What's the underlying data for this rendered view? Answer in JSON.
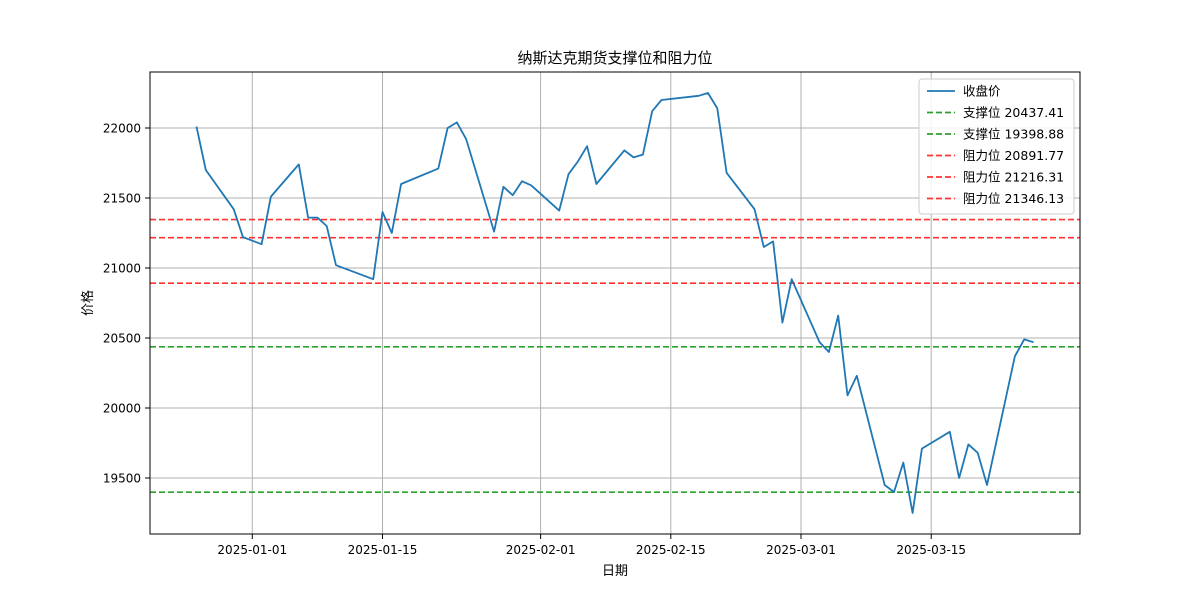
{
  "chart_data": {
    "type": "line",
    "title": "纳斯达克期货支撑位和阻力位",
    "xlabel": "日期",
    "ylabel": "价格",
    "xlim": [
      "2024-12-21",
      "2025-03-31"
    ],
    "ylim": [
      19100,
      22400
    ],
    "x_ticks": [
      "2025-01-01",
      "2025-01-15",
      "2025-02-01",
      "2025-02-15",
      "2025-03-01",
      "2025-03-15"
    ],
    "y_ticks": [
      19500,
      20000,
      20500,
      21000,
      21500,
      22000
    ],
    "grid": true,
    "legend_position": "top-right",
    "colors": {
      "close": "#1f77b4",
      "support": "#2ca02c",
      "resistance": "#ff3333",
      "grid": "#b0b0b0"
    },
    "series": [
      {
        "name": "收盘价",
        "style": "solid",
        "points": [
          [
            "2024-12-26",
            22010
          ],
          [
            "2024-12-27",
            21700
          ],
          [
            "2024-12-30",
            21420
          ],
          [
            "2024-12-31",
            21220
          ],
          [
            "2025-01-02",
            21170
          ],
          [
            "2025-01-03",
            21510
          ],
          [
            "2025-01-06",
            21740
          ],
          [
            "2025-01-07",
            21360
          ],
          [
            "2025-01-08",
            21360
          ],
          [
            "2025-01-09",
            21300
          ],
          [
            "2025-01-10",
            21020
          ],
          [
            "2025-01-14",
            20920
          ],
          [
            "2025-01-15",
            21400
          ],
          [
            "2025-01-16",
            21250
          ],
          [
            "2025-01-17",
            21600
          ],
          [
            "2025-01-21",
            21710
          ],
          [
            "2025-01-22",
            22000
          ],
          [
            "2025-01-23",
            22040
          ],
          [
            "2025-01-24",
            21920
          ],
          [
            "2025-01-27",
            21260
          ],
          [
            "2025-01-28",
            21580
          ],
          [
            "2025-01-29",
            21520
          ],
          [
            "2025-01-30",
            21620
          ],
          [
            "2025-01-31",
            21590
          ],
          [
            "2025-02-03",
            21410
          ],
          [
            "2025-02-04",
            21670
          ],
          [
            "2025-02-05",
            21760
          ],
          [
            "2025-02-06",
            21870
          ],
          [
            "2025-02-07",
            21600
          ],
          [
            "2025-02-10",
            21840
          ],
          [
            "2025-02-11",
            21790
          ],
          [
            "2025-02-12",
            21810
          ],
          [
            "2025-02-13",
            22120
          ],
          [
            "2025-02-14",
            22200
          ],
          [
            "2025-02-18",
            22230
          ],
          [
            "2025-02-19",
            22250
          ],
          [
            "2025-02-20",
            22140
          ],
          [
            "2025-02-21",
            21680
          ],
          [
            "2025-02-24",
            21420
          ],
          [
            "2025-02-25",
            21150
          ],
          [
            "2025-02-26",
            21190
          ],
          [
            "2025-02-27",
            20610
          ],
          [
            "2025-02-28",
            20920
          ],
          [
            "2025-03-03",
            20470
          ],
          [
            "2025-03-04",
            20400
          ],
          [
            "2025-03-05",
            20660
          ],
          [
            "2025-03-06",
            20090
          ],
          [
            "2025-03-07",
            20230
          ],
          [
            "2025-03-10",
            19450
          ],
          [
            "2025-03-11",
            19400
          ],
          [
            "2025-03-12",
            19610
          ],
          [
            "2025-03-13",
            19250
          ],
          [
            "2025-03-14",
            19710
          ],
          [
            "2025-03-17",
            19830
          ],
          [
            "2025-03-18",
            19500
          ],
          [
            "2025-03-19",
            19740
          ],
          [
            "2025-03-20",
            19680
          ],
          [
            "2025-03-21",
            19450
          ],
          [
            "2025-03-24",
            20370
          ],
          [
            "2025-03-25",
            20490
          ],
          [
            "2025-03-26",
            20470
          ]
        ]
      }
    ],
    "hlines": [
      {
        "label": "支撑位 20437.41",
        "value": 20437.41,
        "kind": "support"
      },
      {
        "label": "支撑位 19398.88",
        "value": 19398.88,
        "kind": "support"
      },
      {
        "label": "阻力位 20891.77",
        "value": 20891.77,
        "kind": "resistance"
      },
      {
        "label": "阻力位 21216.31",
        "value": 21216.31,
        "kind": "resistance"
      },
      {
        "label": "阻力位 21346.13",
        "value": 21346.13,
        "kind": "resistance"
      }
    ]
  }
}
